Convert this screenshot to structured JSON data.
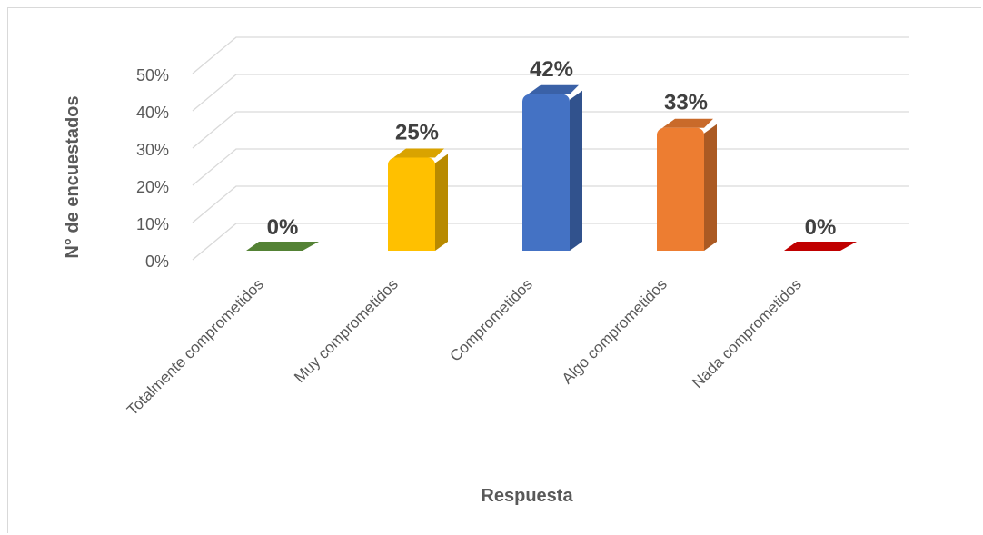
{
  "chart_data": {
    "type": "bar",
    "title": "",
    "xlabel": "Respuesta",
    "ylabel": "N° de encuestados",
    "categories": [
      "Totalmente comprometidos",
      "Muy comprometidos",
      "Comprometidos",
      "Algo comprometidos",
      "Nada comprometidos"
    ],
    "values": [
      0,
      25,
      42,
      33,
      0
    ],
    "value_labels": [
      "0%",
      "25%",
      "42%",
      "33%",
      "0%"
    ],
    "colors": [
      "#548235",
      "#FFC000",
      "#4472C4",
      "#ED7D31",
      "#C00000"
    ],
    "ylim": [
      0,
      50
    ],
    "yticks": [
      "0%",
      "10%",
      "20%",
      "30%",
      "40%",
      "50%"
    ],
    "grid": true,
    "legend": "none",
    "style": "3d-column"
  }
}
